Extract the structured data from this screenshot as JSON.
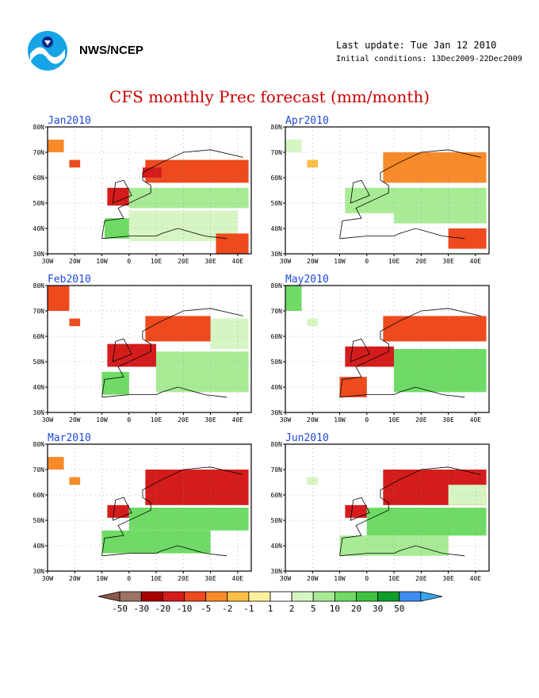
{
  "header": {
    "agency": "NWS/NCEP",
    "last_update": "Last update: Tue Jan 12 2010",
    "initial_conditions": "Initial conditions: 13Dec2009-22Dec2009",
    "title": "CFS monthly Prec forecast (mm/month)"
  },
  "chart_data": {
    "type": "heatmap",
    "title": "CFS monthly Prec forecast (mm/month)",
    "units": "mm/month",
    "xaxis": {
      "label": "",
      "range": [
        -30,
        45
      ],
      "ticks": [
        -30,
        -20,
        -10,
        0,
        10,
        20,
        30,
        40
      ],
      "tick_labels": [
        "30W",
        "20W",
        "10W",
        "0",
        "10E",
        "20E",
        "30E",
        "40E"
      ]
    },
    "yaxis": {
      "label": "",
      "range": [
        30,
        80
      ],
      "ticks": [
        30,
        40,
        50,
        60,
        70,
        80
      ],
      "tick_labels": [
        "30N",
        "40N",
        "50N",
        "60N",
        "70N",
        "80N"
      ]
    },
    "grid": true,
    "panels": [
      {
        "month": "Jan2010",
        "regions": [
          {
            "lon": [
              -30,
              -24
            ],
            "lat": [
              70,
              75
            ],
            "v": -5
          },
          {
            "lon": [
              -22,
              -18
            ],
            "lat": [
              64,
              67
            ],
            "v": -10
          },
          {
            "lon": [
              6,
              44
            ],
            "lat": [
              58,
              67
            ],
            "v": -10
          },
          {
            "lon": [
              5,
              12
            ],
            "lat": [
              60,
              64
            ],
            "v": -20
          },
          {
            "lon": [
              -8,
              0
            ],
            "lat": [
              49,
              56
            ],
            "v": -20
          },
          {
            "lon": [
              0,
              44
            ],
            "lat": [
              48,
              56
            ],
            "v": 5
          },
          {
            "lon": [
              -9,
              0
            ],
            "lat": [
              36,
              44
            ],
            "v": 10
          },
          {
            "lon": [
              0,
              40
            ],
            "lat": [
              35,
              47
            ],
            "v": 2
          },
          {
            "lon": [
              32,
              44
            ],
            "lat": [
              30,
              38
            ],
            "v": -10
          }
        ]
      },
      {
        "month": "Feb2010",
        "regions": [
          {
            "lon": [
              -30,
              -22
            ],
            "lat": [
              70,
              80
            ],
            "v": -10
          },
          {
            "lon": [
              -22,
              -18
            ],
            "lat": [
              64,
              67
            ],
            "v": -10
          },
          {
            "lon": [
              6,
              30
            ],
            "lat": [
              58,
              68
            ],
            "v": -10
          },
          {
            "lon": [
              -8,
              10
            ],
            "lat": [
              48,
              57
            ],
            "v": -20
          },
          {
            "lon": [
              -10,
              0
            ],
            "lat": [
              37,
              46
            ],
            "v": 10
          },
          {
            "lon": [
              10,
              44
            ],
            "lat": [
              38,
              54
            ],
            "v": 5
          },
          {
            "lon": [
              30,
              44
            ],
            "lat": [
              55,
              67
            ],
            "v": 2
          }
        ]
      },
      {
        "month": "Mar2010",
        "regions": [
          {
            "lon": [
              -30,
              -24
            ],
            "lat": [
              70,
              75
            ],
            "v": -5
          },
          {
            "lon": [
              -22,
              -18
            ],
            "lat": [
              64,
              67
            ],
            "v": -5
          },
          {
            "lon": [
              6,
              44
            ],
            "lat": [
              56,
              70
            ],
            "v": -20
          },
          {
            "lon": [
              -8,
              0
            ],
            "lat": [
              51,
              56
            ],
            "v": -20
          },
          {
            "lon": [
              0,
              44
            ],
            "lat": [
              46,
              55
            ],
            "v": 10
          },
          {
            "lon": [
              -10,
              30
            ],
            "lat": [
              37,
              46
            ],
            "v": 10
          }
        ]
      },
      {
        "month": "Apr2010",
        "regions": [
          {
            "lon": [
              -30,
              -24
            ],
            "lat": [
              70,
              75
            ],
            "v": 2
          },
          {
            "lon": [
              -22,
              -18
            ],
            "lat": [
              64,
              67
            ],
            "v": -2
          },
          {
            "lon": [
              6,
              44
            ],
            "lat": [
              58,
              70
            ],
            "v": -5
          },
          {
            "lon": [
              -8,
              10
            ],
            "lat": [
              46,
              56
            ],
            "v": 5
          },
          {
            "lon": [
              10,
              44
            ],
            "lat": [
              42,
              56
            ],
            "v": 5
          },
          {
            "lon": [
              30,
              44
            ],
            "lat": [
              32,
              40
            ],
            "v": -10
          }
        ]
      },
      {
        "month": "May2010",
        "regions": [
          {
            "lon": [
              -30,
              -24
            ],
            "lat": [
              70,
              80
            ],
            "v": 10
          },
          {
            "lon": [
              -22,
              -18
            ],
            "lat": [
              64,
              67
            ],
            "v": 2
          },
          {
            "lon": [
              6,
              44
            ],
            "lat": [
              58,
              68
            ],
            "v": -10
          },
          {
            "lon": [
              -8,
              10
            ],
            "lat": [
              48,
              56
            ],
            "v": -20
          },
          {
            "lon": [
              10,
              44
            ],
            "lat": [
              38,
              55
            ],
            "v": 10
          },
          {
            "lon": [
              -10,
              0
            ],
            "lat": [
              36,
              44
            ],
            "v": -10
          }
        ]
      },
      {
        "month": "Jun2010",
        "regions": [
          {
            "lon": [
              -22,
              -18
            ],
            "lat": [
              64,
              67
            ],
            "v": 2
          },
          {
            "lon": [
              6,
              44
            ],
            "lat": [
              56,
              70
            ],
            "v": -20
          },
          {
            "lon": [
              -8,
              0
            ],
            "lat": [
              51,
              56
            ],
            "v": -20
          },
          {
            "lon": [
              0,
              44
            ],
            "lat": [
              44,
              55
            ],
            "v": 10
          },
          {
            "lon": [
              -10,
              30
            ],
            "lat": [
              36,
              44
            ],
            "v": 5
          },
          {
            "lon": [
              30,
              44
            ],
            "lat": [
              56,
              64
            ],
            "v": 2
          }
        ]
      }
    ],
    "colorbar": {
      "labels": [
        "-50",
        "-30",
        "-20",
        "-10",
        "-5",
        "-2",
        "-1",
        "1",
        "2",
        "5",
        "10",
        "20",
        "30",
        "50"
      ],
      "colors": [
        "#8b5a4a",
        "#9c7365",
        "#a80000",
        "#d41c1c",
        "#ee4a1e",
        "#f78b2a",
        "#fbbf45",
        "#fff0a0",
        "#ffffff",
        "#d6f5c2",
        "#a8eb95",
        "#6fdb66",
        "#3fc23f",
        "#0f9e2a",
        "#3b8ef0",
        "#3aa7ef"
      ]
    },
    "legend_placement": "bottom"
  }
}
